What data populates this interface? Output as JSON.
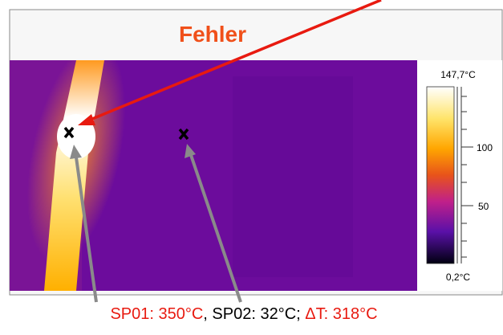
{
  "header": {
    "title": "Fehler"
  },
  "colorbar": {
    "max_label": "147,7°C",
    "min_label": "0,2°C",
    "tick_labels": [
      "100",
      "50"
    ]
  },
  "caption": {
    "parts": [
      "SP01: 350°C",
      ", SP02: 32°C; ",
      "ΔT: 318°C"
    ]
  }
}
